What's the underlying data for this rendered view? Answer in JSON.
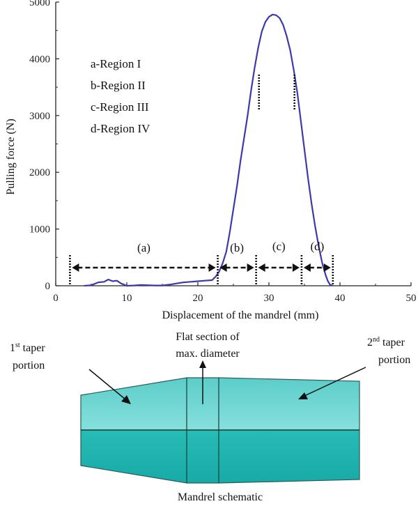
{
  "chart_data": {
    "type": "line",
    "title": "",
    "xlabel": "Displacement of the mandrel (mm)",
    "ylabel": "Pulling force (N)",
    "xlim": [
      0,
      50
    ],
    "ylim": [
      0,
      5000
    ],
    "xticks": [
      0,
      10,
      20,
      30,
      40,
      50
    ],
    "yticks": [
      0,
      1000,
      2000,
      3000,
      4000,
      5000
    ],
    "grid": false,
    "legend_position": "top-left",
    "legend": [
      "a-Region I",
      "b-Region II",
      "c-Region III",
      "d-Region IV"
    ],
    "series": [
      {
        "color": "#3a3aa8",
        "x": [
          4.0,
          5.0,
          6.0,
          6.8,
          7.4,
          8.0,
          8.6,
          9.2,
          10.0,
          11.0,
          12.0,
          13.0,
          14.0,
          15.0,
          16.0,
          17.0,
          18.0,
          19.0,
          20.0,
          21.0,
          22.0,
          22.5,
          23.0,
          23.5,
          24.0,
          24.5,
          25.0,
          25.5,
          26.0,
          26.5,
          27.0,
          27.5,
          28.0,
          28.5,
          29.0,
          29.5,
          30.0,
          30.5,
          31.0,
          31.5,
          32.0,
          32.5,
          33.0,
          33.5,
          34.0,
          34.5,
          35.0,
          35.5,
          36.0,
          36.5,
          37.0,
          37.5,
          38.0,
          38.3,
          38.6,
          39.0
        ],
        "y": [
          0,
          10,
          60,
          70,
          110,
          80,
          90,
          40,
          0,
          5,
          15,
          10,
          5,
          5,
          20,
          40,
          60,
          70,
          80,
          90,
          100,
          160,
          250,
          400,
          600,
          950,
          1350,
          1750,
          2200,
          2600,
          3000,
          3450,
          3850,
          4200,
          4480,
          4650,
          4740,
          4780,
          4770,
          4720,
          4600,
          4400,
          4150,
          3800,
          3400,
          2900,
          2400,
          1900,
          1450,
          1050,
          700,
          400,
          180,
          80,
          20,
          0
        ]
      }
    ],
    "region_labels": [
      "(a)",
      "(b)",
      "(c)",
      "(d)"
    ],
    "region_boundaries_x": [
      2.0,
      22.8,
      28.2,
      34.6,
      39.0
    ],
    "peak_markers_x": [
      28.6,
      33.6
    ]
  },
  "schematic": {
    "caption": "Mandrel schematic",
    "first_taper": {
      "sup": "st",
      "line1_pre": "1",
      "line1_post": " taper",
      "line2": "portion"
    },
    "flat_section": {
      "line1": "Flat section of",
      "line2": "max. diameter"
    },
    "second_taper": {
      "sup": "nd",
      "line1_pre": "2",
      "line1_post": " taper",
      "line2": "portion"
    },
    "colors": {
      "light": "#62d0cc",
      "dark": "#1fb5b0",
      "edge": "#2a4a4a"
    }
  }
}
